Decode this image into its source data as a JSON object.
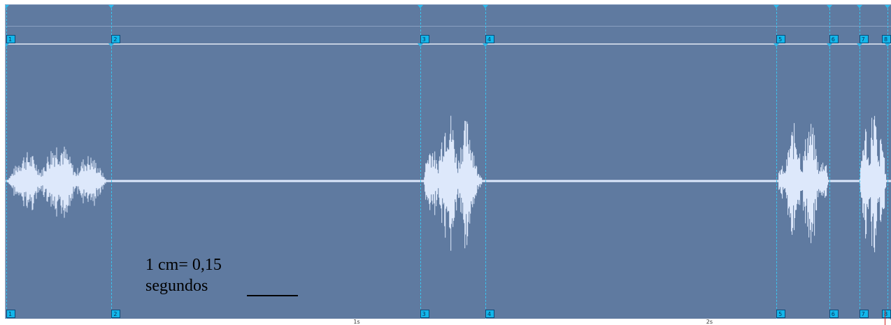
{
  "markers": [
    {
      "label": "1",
      "t": 0.0
    },
    {
      "label": "2",
      "t": 0.3
    },
    {
      "label": "3",
      "t": 1.175
    },
    {
      "label": "4",
      "t": 1.36
    },
    {
      "label": "5",
      "t": 2.185
    },
    {
      "label": "6",
      "t": 2.335
    },
    {
      "label": "7",
      "t": 2.42
    },
    {
      "label": "8",
      "t": 2.5
    }
  ],
  "timeline": {
    "ticks": [
      {
        "label": "1s",
        "t": 1.0
      },
      {
        "label": "2s",
        "t": 2.0
      }
    ],
    "duration_s": 2.51
  },
  "annotation": {
    "line1": "1 cm= 0,15",
    "line2": "segundos"
  },
  "colors": {
    "background": "#5f7aa0",
    "waveform": "#dde8fb",
    "marker": "#38c6f2",
    "flag": "#13b6ea"
  },
  "waveform_segments": [
    {
      "start": 0.0,
      "end": 0.3,
      "peak": 0.35
    },
    {
      "start": 1.185,
      "end": 1.36,
      "peak": 0.65
    },
    {
      "start": 2.19,
      "end": 2.34,
      "peak": 0.55
    },
    {
      "start": 2.42,
      "end": 2.5,
      "peak": 0.68
    }
  ]
}
